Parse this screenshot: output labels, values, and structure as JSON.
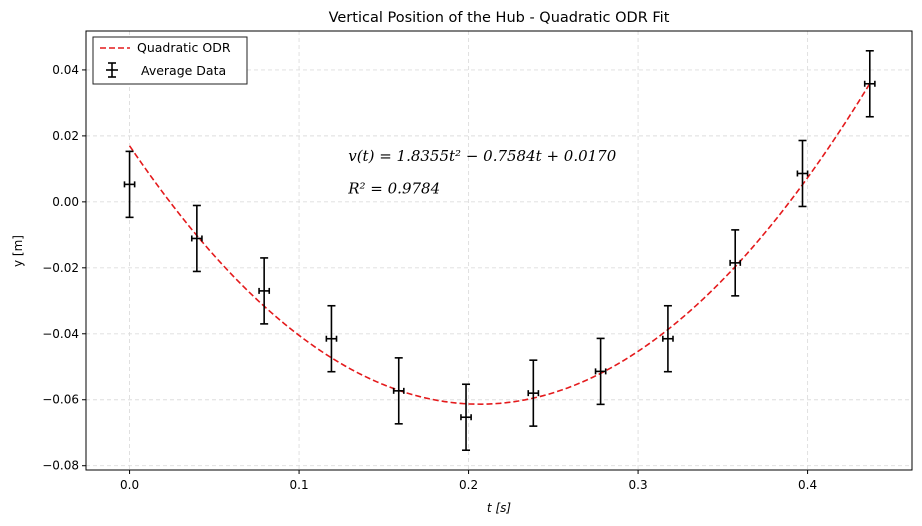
{
  "chart_data": {
    "type": "scatter",
    "title": "Vertical Position of the Hub - Quadratic ODR Fit",
    "xlabel": "t [s]",
    "ylabel": "y [m]",
    "xlim": [
      -0.0257,
      0.4616
    ],
    "ylim": [
      -0.0813,
      0.0518
    ],
    "xticks": [
      0.0,
      0.1,
      0.2,
      0.3,
      0.4
    ],
    "xtick_labels": [
      "0.0",
      "0.1",
      "0.2",
      "0.3",
      "0.4"
    ],
    "yticks": [
      -0.08,
      -0.06,
      -0.04,
      -0.02,
      0.0,
      0.02,
      0.04
    ],
    "ytick_labels": [
      "−0.08",
      "−0.06",
      "−0.04",
      "−0.02",
      "0.00",
      "0.02",
      "0.04"
    ],
    "grid": true,
    "legend_position": "upper-left",
    "series": [
      {
        "name": "Quadratic ODR",
        "kind": "fit-curve",
        "style": "dashed",
        "color": "#e41a1c",
        "coefficients": {
          "a": 1.8355,
          "b": -0.7584,
          "c": 0.017
        },
        "x_range": [
          0.0,
          0.437
        ]
      },
      {
        "name": "Average Data",
        "kind": "errorbar",
        "color": "#000000",
        "x": [
          0.0,
          0.0397,
          0.0794,
          0.1191,
          0.1588,
          0.1985,
          0.2382,
          0.2779,
          0.3176,
          0.3573,
          0.397,
          0.4367
        ],
        "y": [
          0.0053,
          -0.0111,
          -0.027,
          -0.0415,
          -0.0573,
          -0.0653,
          -0.058,
          -0.0514,
          -0.0415,
          -0.0185,
          0.0086,
          0.0358
        ],
        "yerr": 0.01,
        "xerr": 0.003
      }
    ],
    "annotations": [
      {
        "text": "v(t) = 1.8355t² − 0.7584t + 0.0170",
        "at": [
          0.129,
          0.0124
        ]
      },
      {
        "text": "R² = 0.9784",
        "at": [
          0.129,
          0.0026
        ]
      }
    ]
  }
}
